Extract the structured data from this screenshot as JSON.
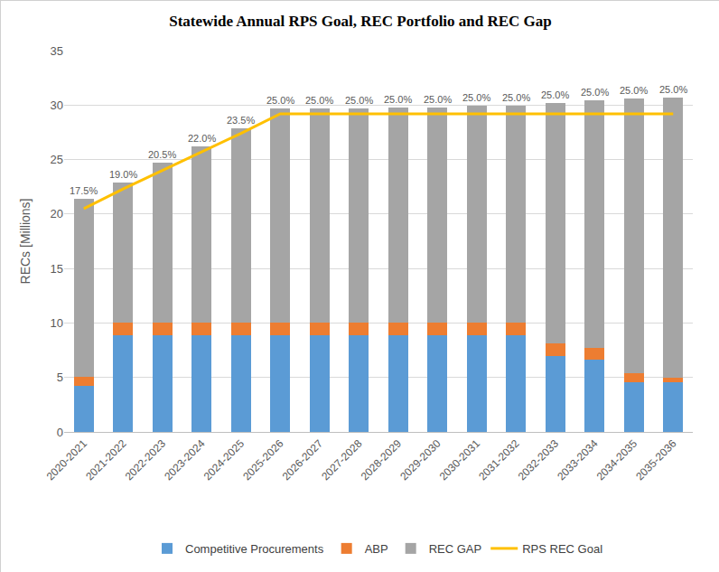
{
  "chart_data": {
    "type": "bar",
    "title": "Statewide Annual RPS Goal, REC Portfolio and REC Gap",
    "y_label": "RECs [Millions]",
    "categories": [
      "2020-2021",
      "2021-2022",
      "2022-2023",
      "2023-2024",
      "2024-2025",
      "2025-2026",
      "2026-2027",
      "2027-2028",
      "2028-2029",
      "2029-2030",
      "2030-2031",
      "2031-2032",
      "2032-2033",
      "2033-2034",
      "2034-2035",
      "2035-2036"
    ],
    "annotations": [
      "17.5%",
      "19.0%",
      "20.5%",
      "22.0%",
      "23.5%",
      "25.0%",
      "25.0%",
      "25.0%",
      "25.0%",
      "25.0%",
      "25.0%",
      "25.0%",
      "25.0%",
      "25.0%",
      "25.0%",
      "25.0%"
    ],
    "series": [
      {
        "name": "Competitive Procurements",
        "type": "bar",
        "color": "#5b9bd5",
        "values": [
          4.2,
          8.9,
          8.9,
          8.9,
          8.9,
          8.9,
          8.9,
          8.9,
          8.9,
          8.9,
          8.9,
          8.9,
          7.0,
          6.6,
          4.6,
          4.6
        ]
      },
      {
        "name": "ABP",
        "type": "bar",
        "color": "#ed7d31",
        "values": [
          0.9,
          1.1,
          1.1,
          1.1,
          1.1,
          1.1,
          1.1,
          1.1,
          1.1,
          1.1,
          1.1,
          1.1,
          1.1,
          1.1,
          0.8,
          0.4
        ]
      },
      {
        "name": "REC GAP",
        "type": "bar",
        "color": "#a5a5a5",
        "values": [
          16.3,
          12.9,
          14.7,
          16.2,
          17.9,
          19.7,
          19.7,
          19.7,
          19.8,
          19.8,
          19.9,
          19.9,
          22.1,
          22.7,
          25.2,
          25.7
        ]
      },
      {
        "name": "RPS REC Goal",
        "type": "line",
        "color": "#ffc000",
        "values": [
          20.5,
          22.3,
          24.0,
          25.7,
          27.4,
          29.2,
          29.2,
          29.2,
          29.2,
          29.2,
          29.2,
          29.2,
          29.2,
          29.2,
          29.2,
          29.2
        ]
      }
    ],
    "stacked": true,
    "ylim": [
      0,
      35
    ],
    "yticks": [
      0,
      5,
      10,
      15,
      20,
      25,
      30,
      35
    ],
    "grid": true,
    "legend": "bottom"
  }
}
